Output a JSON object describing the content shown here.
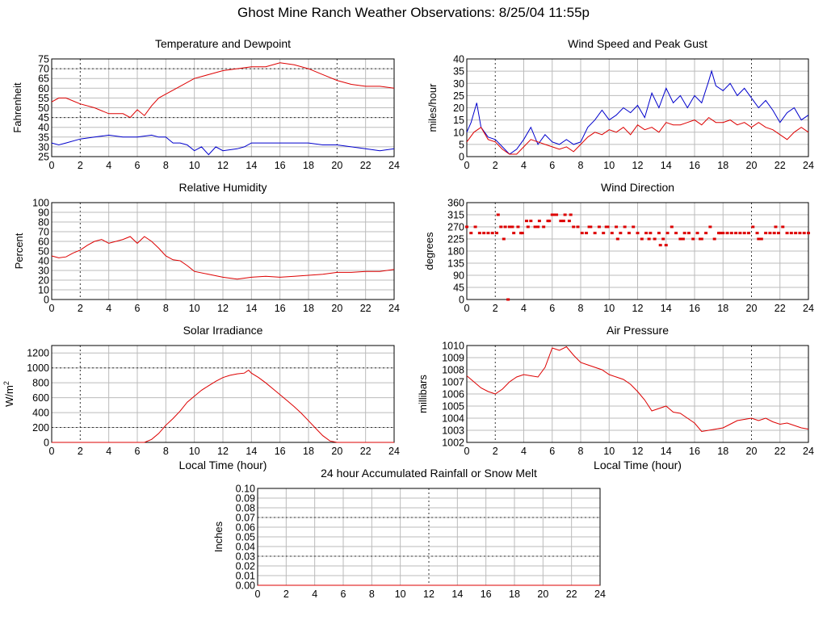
{
  "page_title": "Ghost Mine Ranch Weather Observations: 8/25/04 11:55p",
  "chart_data": [
    {
      "id": "temp",
      "type": "line",
      "title": "Temperature and Dewpoint",
      "ylabel": "Fahrenheit",
      "xlabel": "",
      "xlim": [
        0,
        24
      ],
      "ylim": [
        25,
        75
      ],
      "xticks": [
        0,
        2,
        4,
        6,
        8,
        10,
        12,
        14,
        16,
        18,
        20,
        22,
        24
      ],
      "yticks": [
        25,
        30,
        35,
        40,
        45,
        50,
        55,
        60,
        65,
        70,
        75
      ],
      "series": [
        {
          "color": "#dd0000",
          "x": [
            0,
            0.5,
            1,
            2,
            3,
            4,
            5,
            5.5,
            6,
            6.5,
            7,
            7.5,
            8,
            9,
            10,
            11,
            12,
            13,
            14,
            15,
            16,
            17,
            18,
            19,
            20,
            21,
            22,
            23,
            24
          ],
          "y": [
            53,
            55,
            55,
            52,
            50,
            47,
            47,
            45,
            49,
            46,
            51,
            55,
            57,
            61,
            65,
            67,
            69,
            70,
            71,
            71,
            73,
            72,
            70,
            67,
            64,
            62,
            61,
            61,
            60
          ]
        },
        {
          "color": "#0000cc",
          "x": [
            0,
            0.5,
            1,
            2,
            3,
            4,
            5,
            6,
            7,
            7.5,
            8,
            8.5,
            9,
            9.5,
            10,
            10.5,
            11,
            11.5,
            12,
            13,
            13.5,
            14,
            15,
            16,
            17,
            18,
            19,
            20,
            21,
            22,
            23,
            24
          ],
          "y": [
            32,
            31,
            32,
            34,
            35,
            36,
            35,
            35,
            36,
            35,
            35,
            32,
            32,
            31,
            28,
            30,
            26,
            30,
            28,
            29,
            30,
            32,
            32,
            32,
            32,
            32,
            31,
            31,
            30,
            29,
            28,
            29
          ]
        }
      ]
    },
    {
      "id": "wind",
      "type": "line",
      "title": "Wind Speed and Peak Gust",
      "ylabel": "miles/hour",
      "xlabel": "",
      "xlim": [
        0,
        24
      ],
      "ylim": [
        0,
        40
      ],
      "xticks": [
        0,
        2,
        4,
        6,
        8,
        10,
        12,
        14,
        16,
        18,
        20,
        22,
        24
      ],
      "yticks": [
        0,
        5,
        10,
        15,
        20,
        25,
        30,
        35,
        40
      ],
      "series": [
        {
          "color": "#0000cc",
          "x": [
            0,
            0.3,
            0.7,
            1,
            1.5,
            2,
            2.5,
            3,
            3.5,
            4,
            4.5,
            5,
            5.5,
            6,
            6.5,
            7,
            7.5,
            8,
            8.5,
            9,
            9.5,
            10,
            10.5,
            11,
            11.5,
            12,
            12.5,
            13,
            13.5,
            14,
            14.5,
            15,
            15.5,
            16,
            16.5,
            17,
            17.2,
            17.5,
            18,
            18.5,
            19,
            19.5,
            20,
            20.5,
            21,
            21.5,
            22,
            22.5,
            23,
            23.5,
            24
          ],
          "y": [
            10,
            14,
            22,
            12,
            8,
            7,
            4,
            1,
            3,
            7,
            12,
            5,
            9,
            6,
            5,
            7,
            5,
            6,
            12,
            15,
            19,
            15,
            17,
            20,
            18,
            21,
            16,
            26,
            20,
            28,
            22,
            25,
            20,
            25,
            22,
            31,
            35,
            29,
            27,
            30,
            25,
            28,
            24,
            20,
            23,
            19,
            14,
            18,
            20,
            15,
            17
          ]
        },
        {
          "color": "#dd0000",
          "x": [
            0,
            0.5,
            1,
            1.5,
            2,
            2.5,
            3,
            3.5,
            4,
            4.5,
            5,
            5.5,
            6,
            6.5,
            7,
            7.5,
            8,
            8.5,
            9,
            9.5,
            10,
            10.5,
            11,
            11.5,
            12,
            12.5,
            13,
            13.5,
            14,
            14.5,
            15,
            15.5,
            16,
            16.5,
            17,
            17.5,
            18,
            18.5,
            19,
            19.5,
            20,
            20.5,
            21,
            21.5,
            22,
            22.5,
            23,
            23.5,
            24
          ],
          "y": [
            6,
            10,
            12,
            7,
            6,
            3,
            1,
            1,
            4,
            7,
            6,
            5,
            4,
            3,
            4,
            2,
            5,
            8,
            10,
            9,
            11,
            10,
            12,
            9,
            13,
            11,
            12,
            10,
            14,
            13,
            13,
            14,
            15,
            13,
            16,
            14,
            14,
            15,
            13,
            14,
            12,
            14,
            12,
            11,
            9,
            7,
            10,
            12,
            10
          ]
        }
      ]
    },
    {
      "id": "humid",
      "type": "line",
      "title": "Relative Humidity",
      "ylabel": "Percent",
      "xlabel": "",
      "xlim": [
        0,
        24
      ],
      "ylim": [
        0,
        100
      ],
      "xticks": [
        0,
        2,
        4,
        6,
        8,
        10,
        12,
        14,
        16,
        18,
        20,
        22,
        24
      ],
      "yticks": [
        0,
        10,
        20,
        30,
        40,
        50,
        60,
        70,
        80,
        90,
        100
      ],
      "series": [
        {
          "color": "#dd0000",
          "x": [
            0,
            0.5,
            1,
            1.5,
            2,
            2.5,
            3,
            3.5,
            4,
            4.5,
            5,
            5.5,
            6,
            6.5,
            7,
            7.5,
            8,
            8.5,
            9,
            9.5,
            10,
            11,
            12,
            13,
            14,
            15,
            16,
            17,
            18,
            19,
            20,
            21,
            22,
            23,
            24
          ],
          "y": [
            45,
            43,
            44,
            48,
            51,
            56,
            60,
            62,
            58,
            60,
            62,
            65,
            58,
            65,
            60,
            53,
            45,
            41,
            40,
            35,
            29,
            26,
            23,
            21,
            23,
            24,
            23,
            24,
            25,
            26,
            28,
            28,
            29,
            29,
            31
          ]
        }
      ]
    },
    {
      "id": "winddir",
      "type": "scatter",
      "title": "Wind Direction",
      "ylabel": "degrees",
      "xlabel": "",
      "xlim": [
        0,
        24
      ],
      "ylim": [
        0,
        360
      ],
      "xticks": [
        0,
        2,
        4,
        6,
        8,
        10,
        12,
        14,
        16,
        18,
        20,
        22,
        24
      ],
      "yticks": [
        0,
        45,
        90,
        135,
        180,
        225,
        270,
        315,
        360
      ],
      "series": [
        {
          "color": "#dd0000",
          "x": [
            0,
            0.3,
            0.6,
            0.9,
            1.2,
            1.5,
            1.8,
            2.1,
            2.4,
            2.7,
            3.0,
            3.3,
            3.6,
            3.9,
            4.2,
            4.5,
            4.8,
            5.1,
            5.4,
            5.7,
            6.0,
            6.3,
            6.6,
            6.9,
            7.2,
            7.5,
            7.8,
            8.1,
            8.4,
            8.7,
            9.0,
            9.3,
            9.6,
            9.9,
            10.2,
            10.5,
            10.8,
            11.1,
            11.4,
            11.7,
            12.0,
            12.3,
            12.6,
            12.9,
            13.2,
            13.5,
            13.8,
            14.1,
            14.4,
            14.7,
            15.0,
            15.3,
            15.6,
            15.9,
            16.2,
            16.5,
            16.8,
            17.1,
            17.4,
            17.7,
            18.0,
            18.3,
            18.6,
            18.9,
            19.2,
            19.5,
            19.8,
            20.1,
            20.4,
            20.7,
            21.0,
            21.3,
            21.6,
            21.9,
            22.2,
            22.5,
            22.8,
            23.1,
            23.4,
            23.7,
            24.0,
            2.2,
            2.6,
            2.9,
            3.2,
            3.8,
            4.3,
            5.0,
            5.8,
            6.2,
            6.8,
            7.3,
            8.6,
            9.8,
            10.6,
            12.8,
            13.6,
            14.0,
            15.2,
            16.4,
            17.8,
            20.5,
            21.7
          ],
          "y": [
            270,
            247,
            270,
            247,
            247,
            247,
            247,
            247,
            270,
            270,
            270,
            247,
            270,
            247,
            292,
            292,
            270,
            292,
            270,
            292,
            315,
            315,
            292,
            315,
            292,
            270,
            270,
            247,
            247,
            270,
            247,
            270,
            247,
            270,
            247,
            270,
            247,
            270,
            247,
            270,
            247,
            225,
            247,
            247,
            225,
            247,
            225,
            247,
            270,
            247,
            225,
            247,
            247,
            225,
            247,
            225,
            247,
            270,
            225,
            247,
            247,
            247,
            247,
            247,
            247,
            247,
            247,
            270,
            247,
            225,
            247,
            247,
            247,
            247,
            270,
            247,
            247,
            247,
            247,
            247,
            247,
            315,
            225,
            0,
            270,
            247,
            270,
            270,
            292,
            315,
            292,
            315,
            270,
            270,
            225,
            225,
            202,
            202,
            225,
            225,
            247,
            225,
            270
          ]
        }
      ]
    },
    {
      "id": "solar",
      "type": "line",
      "title": "Solar Irradiance",
      "ylabel": "W/m",
      "ylabel_sup": "2",
      "xlabel": "Local Time (hour)",
      "xlim": [
        0,
        24
      ],
      "ylim": [
        0,
        1300
      ],
      "xticks": [
        0,
        2,
        4,
        6,
        8,
        10,
        12,
        14,
        16,
        18,
        20,
        22,
        24
      ],
      "yticks": [
        0,
        200,
        400,
        600,
        800,
        1000,
        1200
      ],
      "series": [
        {
          "color": "#dd0000",
          "x": [
            0,
            6.5,
            7,
            7.5,
            8,
            8.5,
            9,
            9.5,
            10,
            10.5,
            11,
            11.5,
            12,
            12.5,
            13,
            13.5,
            13.8,
            14,
            14.5,
            15,
            15.5,
            16,
            16.5,
            17,
            17.5,
            18,
            18.5,
            19,
            19.5,
            20,
            24
          ],
          "y": [
            0,
            0,
            40,
            120,
            230,
            320,
            420,
            540,
            620,
            700,
            760,
            820,
            870,
            900,
            920,
            930,
            970,
            930,
            870,
            800,
            720,
            640,
            560,
            480,
            390,
            290,
            190,
            90,
            20,
            0,
            0
          ]
        }
      ]
    },
    {
      "id": "pressure",
      "type": "line",
      "title": "Air Pressure",
      "ylabel": "millibars",
      "xlabel": "Local Time (hour)",
      "xlim": [
        0,
        24
      ],
      "ylim": [
        1002,
        1010
      ],
      "xticks": [
        0,
        2,
        4,
        6,
        8,
        10,
        12,
        14,
        16,
        18,
        20,
        22,
        24
      ],
      "yticks": [
        1002,
        1003,
        1004,
        1005,
        1006,
        1007,
        1008,
        1009,
        1010
      ],
      "series": [
        {
          "color": "#dd0000",
          "x": [
            0,
            0.5,
            1,
            1.5,
            2,
            2.5,
            3,
            3.5,
            4,
            4.5,
            5,
            5.5,
            6,
            6.5,
            7,
            7.5,
            8,
            8.5,
            9,
            9.5,
            10,
            10.5,
            11,
            11.5,
            12,
            12.5,
            13,
            13.5,
            14,
            14.5,
            15,
            15.5,
            16,
            16.5,
            17,
            17.5,
            18,
            18.5,
            19,
            19.5,
            20,
            20.5,
            21,
            21.5,
            22,
            22.5,
            23,
            23.5,
            24
          ],
          "y": [
            1007.5,
            1007.0,
            1006.5,
            1006.2,
            1006.0,
            1006.4,
            1007.0,
            1007.4,
            1007.6,
            1007.5,
            1007.4,
            1008.2,
            1009.8,
            1009.6,
            1009.9,
            1009.2,
            1008.6,
            1008.4,
            1008.2,
            1008.0,
            1007.6,
            1007.4,
            1007.2,
            1006.8,
            1006.2,
            1005.5,
            1004.6,
            1004.8,
            1005.0,
            1004.5,
            1004.4,
            1004.0,
            1003.6,
            1002.9,
            1003.0,
            1003.1,
            1003.2,
            1003.5,
            1003.8,
            1003.9,
            1004.0,
            1003.8,
            1004.0,
            1003.7,
            1003.5,
            1003.6,
            1003.4,
            1003.2,
            1003.1
          ]
        }
      ]
    },
    {
      "id": "rain",
      "type": "line",
      "title": "24 hour Accumulated Rainfall or Snow Melt",
      "ylabel": "Inches",
      "xlabel": "",
      "xlim": [
        0,
        24
      ],
      "ylim": [
        0,
        0.1
      ],
      "xticks": [
        0,
        2,
        4,
        6,
        8,
        10,
        12,
        14,
        16,
        18,
        20,
        22,
        24
      ],
      "yticks": [
        0.0,
        0.01,
        0.02,
        0.03,
        0.04,
        0.05,
        0.06,
        0.07,
        0.08,
        0.09,
        0.1
      ],
      "ytick_decimals": 2,
      "series": [
        {
          "color": "#dd0000",
          "x": [
            0,
            24
          ],
          "y": [
            0,
            0
          ]
        }
      ]
    }
  ]
}
